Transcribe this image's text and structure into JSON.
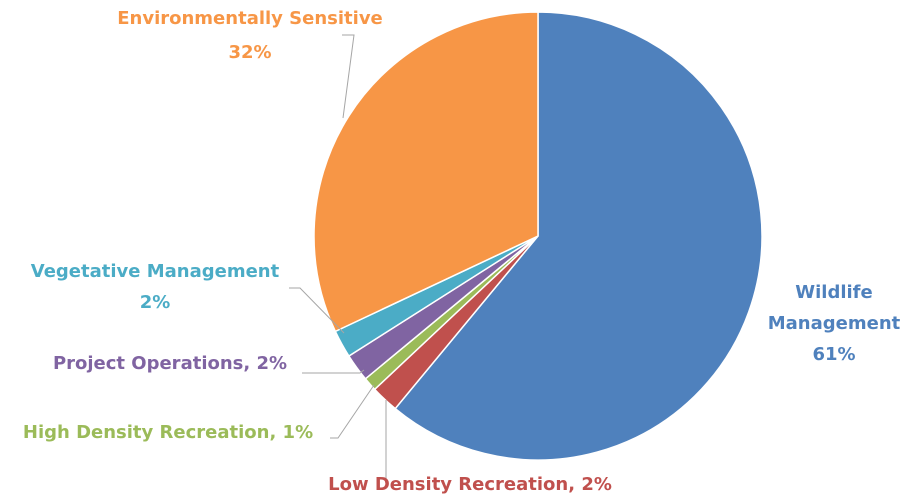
{
  "chart_data": {
    "type": "pie",
    "slices": [
      {
        "label": "Wildlife Management",
        "value": 61,
        "color": "#4F81BD",
        "label_lines": [
          "Wildlife",
          "Management",
          "61%"
        ]
      },
      {
        "label": "Low Density Recreation",
        "value": 2,
        "color": "#C0504D",
        "label_lines": [
          "Low Density Recreation, 2%"
        ]
      },
      {
        "label": "High Density Recreation",
        "value": 1,
        "color": "#9BBB59",
        "label_lines": [
          "High Density Recreation, 1%"
        ]
      },
      {
        "label": "Project Operations",
        "value": 2,
        "color": "#8064A2",
        "label_lines": [
          "Project Operations, 2%"
        ]
      },
      {
        "label": "Vegetative Management",
        "value": 2,
        "color": "#4BACC6",
        "label_lines": [
          "Vegetative Management",
          "2%"
        ]
      },
      {
        "label": "Environmentally Sensitive",
        "value": 32,
        "color": "#F79646",
        "label_lines": [
          "Environmentally Sensitive",
          "32%"
        ]
      }
    ],
    "legend": "none",
    "data_labels": "outside with leader lines"
  }
}
